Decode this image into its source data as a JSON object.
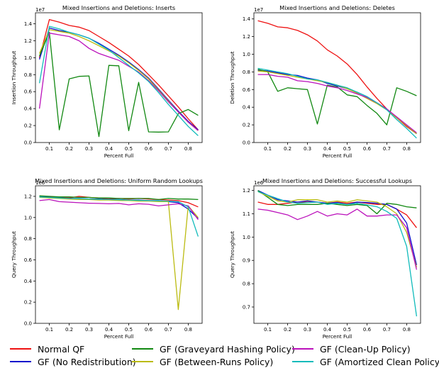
{
  "colors": {
    "Normal QF": "#ee1111",
    "GF (No Redistribution)": "#1010cc",
    "GF (Graveyard Hashing Policy)": "#118811",
    "GF (Between-Runs Policy)": "#bbbb11",
    "GF (Clean-Up Policy)": "#bb11bb",
    "GF (Amortized Clean Policy)": "#11bbbb"
  },
  "legend": [
    "Normal QF",
    "GF (Graveyard Hashing Policy)",
    "GF (Clean-Up Policy)",
    "GF (No Redistribution)",
    "GF (Between-Runs Policy)",
    "GF (Amortized Clean Policy)"
  ],
  "chart_data": [
    {
      "type": "line",
      "title": "Mixed Insertions and Deletions: Inserts",
      "xlabel": "Percent Full",
      "ylabel": "Insertion Throughput",
      "offset_label": "1e7",
      "xlim": [
        0.03,
        0.87
      ],
      "ylim": [
        0,
        15300000
      ],
      "xticks": [
        0.1,
        0.2,
        0.3,
        0.4,
        0.5,
        0.6,
        0.7,
        0.8
      ],
      "xtick_labels": [
        "0.1",
        "0.2",
        "0.3",
        "0.4",
        "0.5",
        "0.6",
        "0.7",
        "0.8"
      ],
      "yticks": [
        0,
        2000000,
        4000000,
        6000000,
        8000000,
        10000000,
        12000000,
        14000000
      ],
      "ytick_labels": [
        "0.0",
        "0.2",
        "0.4",
        "0.6",
        "0.8",
        "1.0",
        "1.2",
        "1.4"
      ],
      "x": [
        0.05,
        0.1,
        0.15,
        0.2,
        0.25,
        0.3,
        0.35,
        0.4,
        0.45,
        0.5,
        0.55,
        0.6,
        0.65,
        0.7,
        0.75,
        0.8,
        0.85
      ],
      "series": [
        {
          "name": "Normal QF",
          "values": [
            10000000,
            14500000,
            14200000,
            13800000,
            13600000,
            13200000,
            12500000,
            11800000,
            11000000,
            10200000,
            9200000,
            8000000,
            6800000,
            5500000,
            4200000,
            2800000,
            1500000
          ]
        },
        {
          "name": "GF (No Redistribution)",
          "values": [
            9800000,
            13500000,
            13200000,
            13000000,
            12700000,
            12300000,
            11700000,
            11000000,
            10300000,
            9500000,
            8600000,
            7600000,
            6300000,
            5000000,
            3700000,
            2500000,
            1500000
          ]
        },
        {
          "name": "GF (Graveyard Hashing Policy)",
          "values": [
            10200000,
            13000000,
            1500000,
            7500000,
            7800000,
            7850000,
            700000,
            9100000,
            9050000,
            1400000,
            7100000,
            1250000,
            1230000,
            1250000,
            3400000,
            3900000,
            3200000
          ]
        },
        {
          "name": "GF (Between-Runs Policy)",
          "values": [
            10500000,
            13300000,
            13100000,
            12900000,
            12500000,
            12000000,
            11400000,
            10800000,
            10200000,
            9400000,
            8500000,
            7500000,
            6200000,
            4900000,
            3600000,
            2400000,
            1400000
          ]
        },
        {
          "name": "GF (Clean-Up Policy)",
          "values": [
            4000000,
            12900000,
            12700000,
            12500000,
            12000000,
            11100000,
            10500000,
            10100000,
            9700000,
            9000000,
            8300000,
            7300000,
            6100000,
            4800000,
            3600000,
            2400000,
            1400000
          ]
        },
        {
          "name": "GF (Amortized Clean Policy)",
          "values": [
            7000000,
            13700000,
            13400000,
            13000000,
            12700000,
            12300000,
            11600000,
            10900000,
            10000000,
            9100000,
            8200000,
            7200000,
            5900000,
            4500000,
            3200000,
            1900000,
            800000
          ]
        }
      ]
    },
    {
      "type": "line",
      "title": "Mixed Insertions and Deletions: Deletes",
      "xlabel": "Percent Full",
      "ylabel": "Deletion Throughput",
      "offset_label": "1e7",
      "xlim": [
        0.03,
        0.87
      ],
      "ylim": [
        0,
        14700000
      ],
      "xticks": [
        0.1,
        0.2,
        0.3,
        0.4,
        0.5,
        0.6,
        0.7,
        0.8
      ],
      "xtick_labels": [
        "0.1",
        "0.2",
        "0.3",
        "0.4",
        "0.5",
        "0.6",
        "0.7",
        "0.8"
      ],
      "yticks": [
        0,
        2000000,
        4000000,
        6000000,
        8000000,
        10000000,
        12000000,
        14000000
      ],
      "ytick_labels": [
        "0.0",
        "0.2",
        "0.4",
        "0.6",
        "0.8",
        "1.0",
        "1.2",
        "1.4"
      ],
      "x": [
        0.05,
        0.1,
        0.15,
        0.2,
        0.25,
        0.3,
        0.35,
        0.4,
        0.45,
        0.5,
        0.55,
        0.6,
        0.65,
        0.7,
        0.75,
        0.8,
        0.85
      ],
      "series": [
        {
          "name": "Normal QF",
          "values": [
            13800000,
            13500000,
            13100000,
            13000000,
            12700000,
            12200000,
            11500000,
            10500000,
            9800000,
            8900000,
            7700000,
            6300000,
            5000000,
            3800000,
            2800000,
            1800000,
            1000000
          ]
        },
        {
          "name": "GF (No Redistribution)",
          "values": [
            8200000,
            8100000,
            7900000,
            7700000,
            7600000,
            7300000,
            7100000,
            6700000,
            6400000,
            6100000,
            5700000,
            5200000,
            4500000,
            3800000,
            2800000,
            1900000,
            1000000
          ]
        },
        {
          "name": "GF (Graveyard Hashing Policy)",
          "values": [
            8300000,
            8000000,
            5800000,
            6200000,
            6100000,
            6000000,
            2100000,
            6500000,
            6300000,
            5400000,
            5200000,
            4200000,
            3300000,
            2000000,
            6200000,
            5800000,
            5300000
          ]
        },
        {
          "name": "GF (Between-Runs Policy)",
          "values": [
            8100000,
            8000000,
            7800000,
            7600000,
            7400000,
            7200000,
            7000000,
            6800000,
            6500000,
            6100000,
            5600000,
            5000000,
            4400000,
            3700000,
            2800000,
            1900000,
            1000000
          ]
        },
        {
          "name": "GF (Clean-Up Policy)",
          "values": [
            7700000,
            7700000,
            7500000,
            7400000,
            7000000,
            6900000,
            6700000,
            6400000,
            6200000,
            5900000,
            5500000,
            5100000,
            4500000,
            3800000,
            2900000,
            2000000,
            1100000
          ]
        },
        {
          "name": "GF (Amortized Clean Policy)",
          "values": [
            8400000,
            8200000,
            8000000,
            7800000,
            7500000,
            7200000,
            7100000,
            6800000,
            6500000,
            6200000,
            5700000,
            5200000,
            4500000,
            3700000,
            2600000,
            1600000,
            500000
          ]
        }
      ]
    },
    {
      "type": "line",
      "title": "Mixed Insertions and Deletions: Uniform Random Lookups",
      "xlabel": "Percent Full",
      "ylabel": "Query Throughput",
      "offset_label": "1e6",
      "xlim": [
        0.03,
        0.87
      ],
      "ylim": [
        0,
        1300000
      ],
      "xticks": [
        0.1,
        0.2,
        0.3,
        0.4,
        0.5,
        0.6,
        0.7,
        0.8
      ],
      "xtick_labels": [
        "0.1",
        "0.2",
        "0.3",
        "0.4",
        "0.5",
        "0.6",
        "0.7",
        "0.8"
      ],
      "yticks": [
        0,
        200000,
        400000,
        600000,
        800000,
        1000000,
        1200000
      ],
      "ytick_labels": [
        "0.0",
        "0.2",
        "0.4",
        "0.6",
        "0.8",
        "1.0",
        "1.2"
      ],
      "x": [
        0.05,
        0.1,
        0.15,
        0.2,
        0.25,
        0.3,
        0.35,
        0.4,
        0.45,
        0.5,
        0.55,
        0.6,
        0.65,
        0.7,
        0.75,
        0.8,
        0.85
      ],
      "series": [
        {
          "name": "Normal QF",
          "values": [
            1200000,
            1195000,
            1190000,
            1185000,
            1200000,
            1190000,
            1185000,
            1175000,
            1180000,
            1175000,
            1180000,
            1175000,
            1170000,
            1165000,
            1160000,
            1140000,
            1100000
          ]
        },
        {
          "name": "GF (No Redistribution)",
          "values": [
            1200000,
            1190000,
            1185000,
            1180000,
            1180000,
            1175000,
            1175000,
            1170000,
            1170000,
            1165000,
            1165000,
            1160000,
            1160000,
            1150000,
            1140000,
            1080000,
            990000
          ]
        },
        {
          "name": "GF (Graveyard Hashing Policy)",
          "values": [
            1205000,
            1200000,
            1195000,
            1195000,
            1190000,
            1190000,
            1185000,
            1185000,
            1180000,
            1180000,
            1180000,
            1180000,
            1170000,
            1180000,
            1175000,
            1175000,
            1170000
          ]
        },
        {
          "name": "GF (Between-Runs Policy)",
          "values": [
            1190000,
            1185000,
            1180000,
            1175000,
            1170000,
            1170000,
            1165000,
            1165000,
            1160000,
            1160000,
            1155000,
            1155000,
            1150000,
            1150000,
            130000,
            1110000,
            1000000
          ]
        },
        {
          "name": "GF (Clean-Up Policy)",
          "values": [
            1160000,
            1170000,
            1150000,
            1145000,
            1140000,
            1135000,
            1133000,
            1130000,
            1133000,
            1120000,
            1130000,
            1125000,
            1110000,
            1120000,
            1130000,
            1110000,
            980000
          ]
        },
        {
          "name": "GF (Amortized Clean Policy)",
          "values": [
            1195000,
            1190000,
            1185000,
            1180000,
            1178000,
            1175000,
            1172000,
            1170000,
            1168000,
            1165000,
            1162000,
            1160000,
            1158000,
            1155000,
            1150000,
            1100000,
            820000
          ]
        }
      ]
    },
    {
      "type": "line",
      "title": "Mixed Insertions and Deletions: Successful Lookups",
      "xlabel": "Percent Full",
      "ylabel": "Query Throughput",
      "offset_label": "1e6",
      "xlim": [
        0.03,
        0.87
      ],
      "ylim": [
        630000,
        1220000
      ],
      "xticks": [
        0.1,
        0.2,
        0.3,
        0.4,
        0.5,
        0.6,
        0.7,
        0.8
      ],
      "xtick_labels": [
        "0.1",
        "0.2",
        "0.3",
        "0.4",
        "0.5",
        "0.6",
        "0.7",
        "0.8"
      ],
      "yticks": [
        700000,
        800000,
        900000,
        1000000,
        1100000,
        1200000
      ],
      "ytick_labels": [
        "0.7",
        "0.8",
        "0.9",
        "1.0",
        "1.1",
        "1.2"
      ],
      "x": [
        0.05,
        0.1,
        0.15,
        0.2,
        0.25,
        0.3,
        0.35,
        0.4,
        0.45,
        0.5,
        0.55,
        0.6,
        0.65,
        0.7,
        0.75,
        0.8,
        0.85
      ],
      "series": [
        {
          "name": "Normal QF",
          "values": [
            1150000,
            1140000,
            1140000,
            1145000,
            1150000,
            1150000,
            1150000,
            1145000,
            1150000,
            1145000,
            1150000,
            1145000,
            1140000,
            1140000,
            1120000,
            1095000,
            1040000
          ]
        },
        {
          "name": "GF (No Redistribution)",
          "values": [
            1200000,
            1180000,
            1160000,
            1155000,
            1150000,
            1155000,
            1150000,
            1145000,
            1148000,
            1140000,
            1150000,
            1148000,
            1145000,
            1140000,
            1120000,
            1060000,
            880000
          ]
        },
        {
          "name": "GF (Graveyard Hashing Policy)",
          "values": [
            1200000,
            1170000,
            1140000,
            1135000,
            1140000,
            1140000,
            1140000,
            1145000,
            1140000,
            1135000,
            1140000,
            1135000,
            1100000,
            1145000,
            1140000,
            1130000,
            1125000
          ]
        },
        {
          "name": "GF (Between-Runs Policy)",
          "values": [
            1195000,
            1175000,
            1155000,
            1150000,
            1160000,
            1160000,
            1160000,
            1150000,
            1155000,
            1150000,
            1160000,
            1155000,
            1150000,
            1130000,
            1100000,
            1020000,
            870000
          ]
        },
        {
          "name": "GF (Clean-Up Policy)",
          "values": [
            1120000,
            1115000,
            1105000,
            1095000,
            1075000,
            1090000,
            1110000,
            1090000,
            1100000,
            1095000,
            1120000,
            1090000,
            1090000,
            1095000,
            1095000,
            1040000,
            860000
          ]
        },
        {
          "name": "GF (Amortized Clean Policy)",
          "values": [
            1195000,
            1180000,
            1165000,
            1150000,
            1145000,
            1148000,
            1150000,
            1140000,
            1145000,
            1140000,
            1145000,
            1138000,
            1130000,
            1110000,
            1080000,
            960000,
            660000
          ]
        }
      ]
    }
  ]
}
